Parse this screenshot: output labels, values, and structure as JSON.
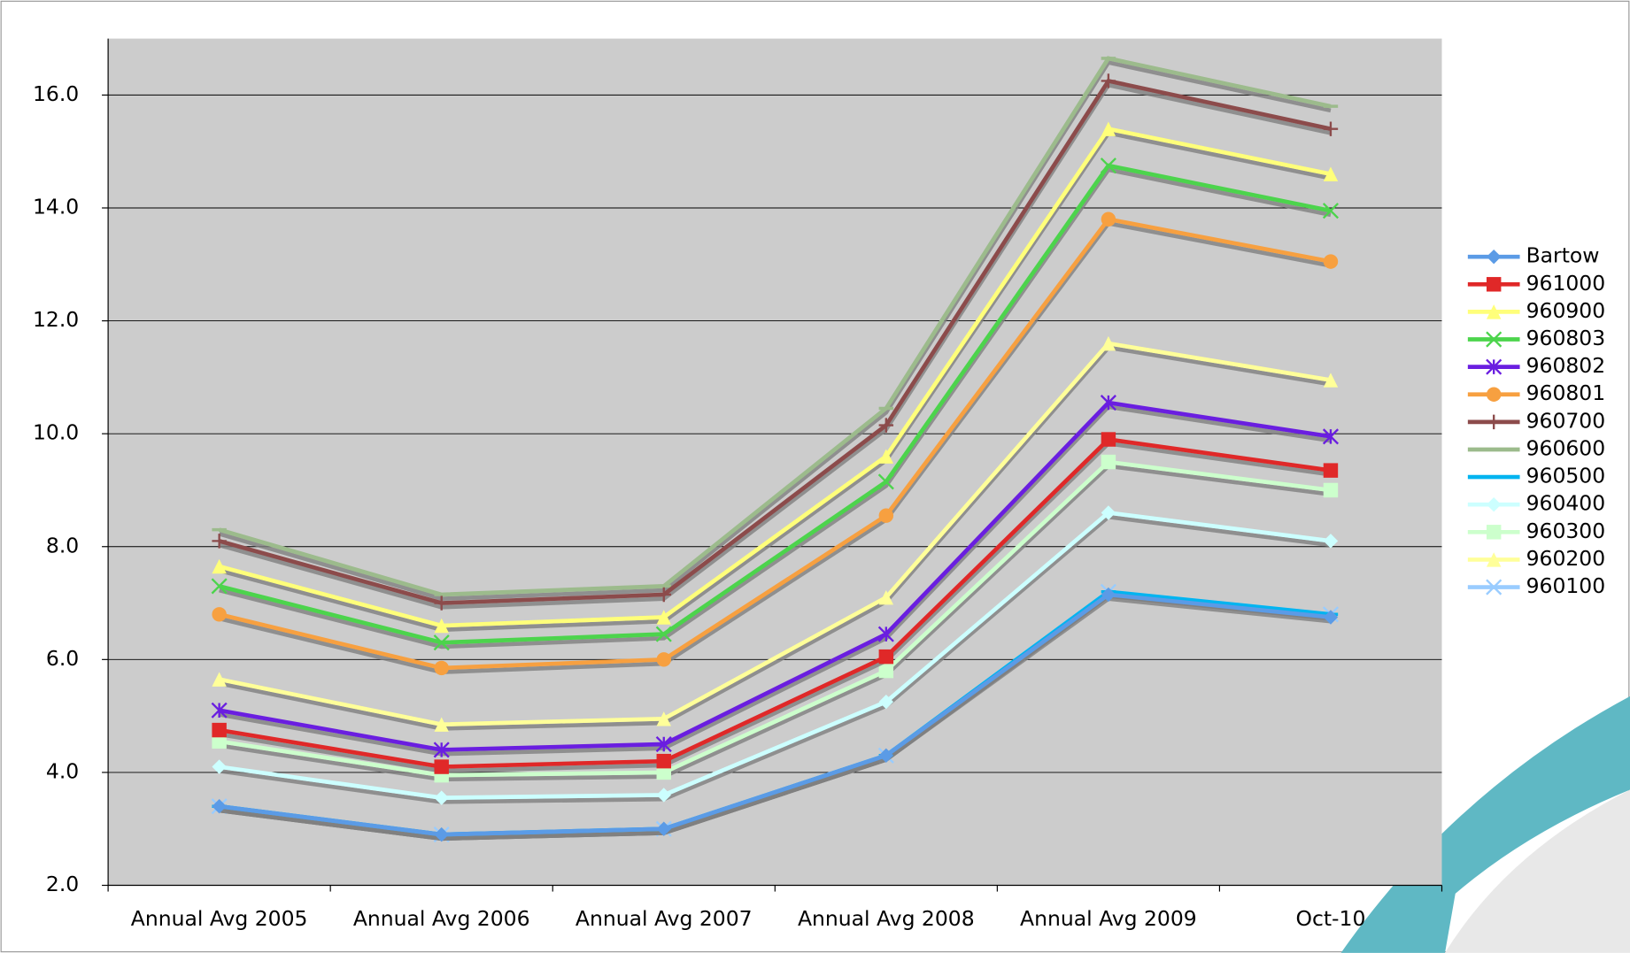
{
  "chart_data": {
    "type": "line",
    "categories": [
      "Annual Avg 2005",
      "Annual Avg 2006",
      "Annual Avg 2007",
      "Annual Avg 2008",
      "Annual Avg 2009",
      "Oct-10"
    ],
    "ylim": [
      2,
      17
    ],
    "yticks": [
      {
        "value": 2,
        "label": "2.0"
      },
      {
        "value": 4,
        "label": "4.0"
      },
      {
        "value": 6,
        "label": "6.0"
      },
      {
        "value": 8,
        "label": "8.0"
      },
      {
        "value": 10,
        "label": "10.0"
      },
      {
        "value": 12,
        "label": "12.0"
      },
      {
        "value": 14,
        "label": "14.0"
      },
      {
        "value": 16,
        "label": "16.0"
      }
    ],
    "grid": true,
    "legend": "right",
    "series": [
      {
        "name": "Bartow",
        "color": "#5b9be6",
        "marker": "diamond",
        "values": [
          3.4,
          2.9,
          3.0,
          4.3,
          7.15,
          6.75
        ]
      },
      {
        "name": "961000",
        "color": "#e02828",
        "marker": "square",
        "values": [
          4.75,
          4.1,
          4.2,
          6.05,
          9.9,
          9.35
        ]
      },
      {
        "name": "960900",
        "color": "#ffff7a",
        "marker": "triangle",
        "values": [
          7.65,
          6.6,
          6.75,
          9.6,
          15.4,
          14.6
        ]
      },
      {
        "name": "960803",
        "color": "#4cd44c",
        "marker": "x",
        "values": [
          7.3,
          6.3,
          6.45,
          9.15,
          14.75,
          13.95
        ]
      },
      {
        "name": "960802",
        "color": "#6a1ee0",
        "marker": "star",
        "values": [
          5.1,
          4.4,
          4.5,
          6.45,
          10.55,
          9.95
        ]
      },
      {
        "name": "960801",
        "color": "#f7a040",
        "marker": "circle",
        "values": [
          6.8,
          5.85,
          6.0,
          8.55,
          13.8,
          13.05
        ]
      },
      {
        "name": "960700",
        "color": "#8c4b4b",
        "marker": "plus",
        "values": [
          8.1,
          7.0,
          7.15,
          10.15,
          16.25,
          15.4
        ]
      },
      {
        "name": "960600",
        "color": "#9cbb8c",
        "marker": "dash",
        "values": [
          8.3,
          7.15,
          7.3,
          10.45,
          16.65,
          15.8
        ]
      },
      {
        "name": "960500",
        "color": "#00b4f0",
        "marker": "dash",
        "values": [
          3.4,
          2.9,
          3.0,
          4.3,
          7.2,
          6.8
        ]
      },
      {
        "name": "960400",
        "color": "#ccffff",
        "marker": "diamond",
        "values": [
          4.1,
          3.55,
          3.6,
          5.25,
          8.6,
          8.1
        ]
      },
      {
        "name": "960300",
        "color": "#ccffcc",
        "marker": "square",
        "values": [
          4.55,
          3.95,
          4.0,
          5.8,
          9.5,
          9.0
        ]
      },
      {
        "name": "960200",
        "color": "#ffff99",
        "marker": "triangle",
        "values": [
          5.65,
          4.85,
          4.95,
          7.1,
          11.6,
          10.95
        ]
      },
      {
        "name": "960100",
        "color": "#99ccff",
        "marker": "x",
        "values": [
          3.4,
          2.9,
          3.0,
          4.3,
          7.2,
          6.8
        ]
      }
    ]
  }
}
